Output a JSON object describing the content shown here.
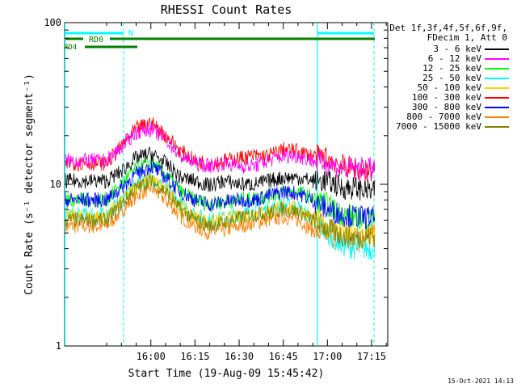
{
  "chart_data": {
    "type": "line",
    "title": "RHESSI Count Rates",
    "xlabel": "Start Time (19-Aug-09 15:45:42)",
    "ylabel": "Count Rate (s⁻¹ detector segment⁻¹)",
    "yscale": "log",
    "ylim": [
      1,
      100
    ],
    "ytick_labels": [
      "1",
      "10",
      "100"
    ],
    "xtick_labels": [
      "16:00",
      "16:15",
      "16:30",
      "16:45",
      "17:00",
      "17:15"
    ],
    "legend_title": [
      "Det 1f,3f,4f,5f,6f,9f,",
      "FDecim 1, Att 0"
    ],
    "legend_position": "right",
    "series": [
      {
        "name": "3 - 6 keV",
        "color": "#000000",
        "values": [
          10.5,
          12,
          14.5,
          15.5,
          13.5,
          11,
          10.5,
          9.8,
          10.5,
          10,
          10,
          10.5,
          11,
          11,
          10.5,
          10.5,
          9.5,
          9.5,
          9
        ]
      },
      {
        "name": "6 - 12 keV",
        "color": "#ff00ff",
        "values": [
          14,
          17,
          21,
          22,
          19,
          15,
          13.5,
          13,
          13.5,
          13,
          13,
          14,
          15,
          15,
          14,
          13.5,
          12.5,
          12.5,
          12.5
        ]
      },
      {
        "name": "12 - 25 keV",
        "color": "#00ff00",
        "values": [
          8,
          10,
          12.5,
          13.5,
          11.5,
          9,
          8,
          7.5,
          7.8,
          8,
          8.2,
          8.5,
          9,
          9,
          8.2,
          7.5,
          6.5,
          6.2,
          6
        ]
      },
      {
        "name": "25 - 50 keV",
        "color": "#00ffff",
        "values": [
          6.5,
          8,
          10,
          11,
          9.5,
          7.5,
          6.5,
          6,
          6.2,
          6.5,
          6.8,
          7,
          7.5,
          7.2,
          6,
          5,
          4.2,
          4,
          4
        ]
      },
      {
        "name": "50 - 100 keV",
        "color": "#ffd000",
        "values": [
          6.3,
          7.8,
          9.8,
          10.8,
          9.3,
          7.3,
          6.3,
          5.8,
          6,
          6.3,
          6.6,
          6.8,
          7.3,
          7,
          6.2,
          5.5,
          5,
          4.8,
          4.8
        ]
      },
      {
        "name": "100 - 300 keV",
        "color": "#ff0000",
        "values": [
          13.5,
          17,
          22,
          24,
          20,
          16,
          14,
          13.5,
          14,
          14.5,
          15,
          15,
          16.5,
          16,
          15,
          14.5,
          13,
          12.5,
          12
        ]
      },
      {
        "name": "300 - 800 keV",
        "color": "#0000ff",
        "values": [
          8,
          9.5,
          11.5,
          13,
          11,
          9,
          8,
          7.5,
          7.8,
          8,
          8,
          8.5,
          9,
          8.8,
          8,
          7,
          6.5,
          6.3,
          6.2
        ]
      },
      {
        "name": "800 - 7000 keV",
        "color": "#ff8000",
        "values": [
          5.5,
          6.8,
          8.5,
          9.5,
          8,
          6.3,
          5.5,
          5,
          5.2,
          5.5,
          5.8,
          6,
          6.3,
          6,
          5.2,
          4.8,
          4.5,
          4.5,
          4.8
        ]
      },
      {
        "name": "7000 - 15000 keV",
        "color": "#808000",
        "values": [
          6,
          7.5,
          9.5,
          10.5,
          9,
          7,
          6,
          5.5,
          5.8,
          6.2,
          6.5,
          6.7,
          7,
          6.8,
          6,
          5.3,
          4.8,
          4.7,
          4.8
        ]
      }
    ],
    "time_minutes_after_1545": [
      0,
      5,
      10,
      15,
      20,
      25,
      30,
      35,
      40,
      45,
      50,
      55,
      60,
      65,
      70,
      75,
      80,
      85,
      90
    ],
    "grid": false,
    "annotations": {
      "night_label": "N",
      "rd0_label": "RD0",
      "rd4_label": "RD4"
    },
    "colors": {
      "night_marker": "#00ffff",
      "rd_marker": "#008000"
    }
  },
  "timestamp": "15-Oct-2021 14:13"
}
